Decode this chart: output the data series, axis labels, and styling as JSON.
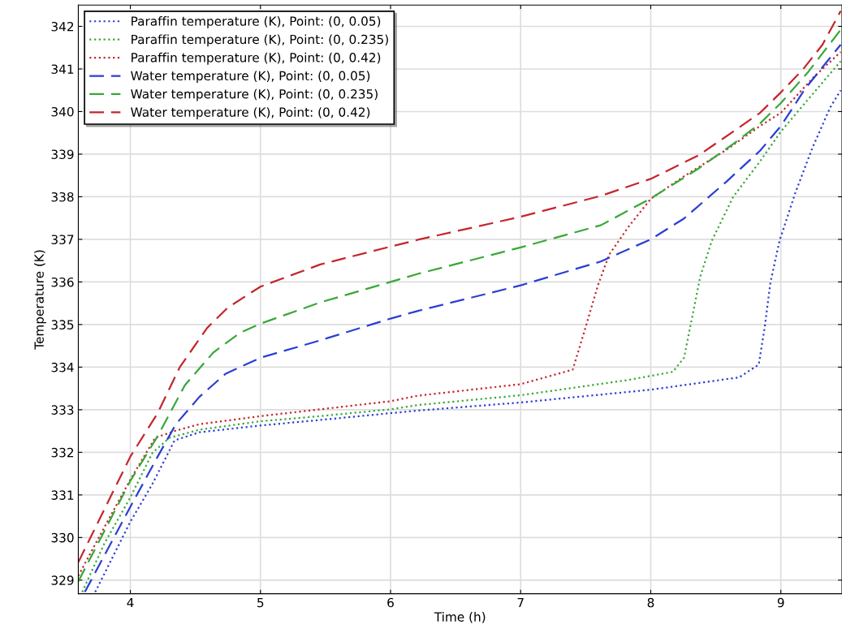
{
  "chart_data": {
    "type": "line",
    "xlabel": "Time (h)",
    "ylabel": "Temperature (K)",
    "xlim": [
      3.6,
      9.47
    ],
    "ylim": [
      328.68,
      342.5
    ],
    "xticks": [
      4,
      5,
      6,
      7,
      8,
      9
    ],
    "yticks": [
      329,
      330,
      331,
      332,
      333,
      334,
      335,
      336,
      337,
      338,
      339,
      340,
      341,
      342
    ],
    "grid": true,
    "legend": "top left",
    "marker": "none",
    "series": [
      {
        "name": "Paraffin temperature (K), Point: (0, 0.05)",
        "color": "#2a3fd4",
        "line_style": "dotted",
        "x": [
          3.73,
          4.0,
          4.17,
          4.34,
          4.53,
          5.0,
          5.46,
          6.0,
          6.21,
          7.0,
          8.0,
          8.68,
          8.83,
          8.876,
          8.92,
          8.99,
          9.11,
          9.24,
          9.38,
          9.46
        ],
        "values": [
          328.72,
          330.37,
          331.26,
          332.28,
          332.47,
          332.63,
          332.76,
          332.92,
          332.98,
          333.17,
          333.47,
          333.76,
          334.06,
          334.94,
          335.99,
          336.97,
          338.08,
          339.13,
          340.1,
          340.5
        ]
      },
      {
        "name": "Paraffin temperature (K), Point: (0, 0.235)",
        "color": "#38a838",
        "line_style": "dotted",
        "x": [
          3.63,
          3.8,
          4.0,
          4.17,
          4.3,
          4.53,
          5.0,
          5.46,
          6.0,
          6.21,
          7.0,
          7.83,
          8.17,
          8.256,
          8.32,
          8.38,
          8.47,
          8.634,
          8.84,
          9.0,
          9.23,
          9.46
        ],
        "values": [
          328.72,
          329.86,
          330.94,
          331.99,
          332.34,
          332.53,
          332.73,
          332.85,
          333.01,
          333.11,
          333.34,
          333.7,
          333.89,
          334.22,
          335.2,
          336.12,
          336.97,
          338.0,
          338.83,
          339.53,
          340.36,
          341.18
        ]
      },
      {
        "name": "Paraffin temperature (K), Point: (0, 0.42)",
        "color": "#c4262c",
        "line_style": "dotted",
        "x": [
          3.6,
          3.8,
          4.0,
          4.19,
          4.34,
          4.53,
          5.0,
          5.46,
          6.0,
          6.21,
          7.0,
          7.4,
          7.487,
          7.594,
          7.68,
          7.83,
          8.0,
          8.256,
          8.58,
          8.84,
          9.0,
          9.25,
          9.46
        ],
        "values": [
          329.1,
          330.24,
          331.36,
          332.34,
          332.5,
          332.66,
          332.85,
          333.01,
          333.2,
          333.33,
          333.6,
          333.94,
          334.81,
          335.92,
          336.64,
          337.3,
          337.95,
          338.48,
          339.1,
          339.66,
          339.97,
          340.8,
          341.4
        ]
      },
      {
        "name": "Water temperature (K), Point: (0, 0.05)",
        "color": "#2a3fd4",
        "line_style": "dashed",
        "x": [
          3.65,
          4.0,
          4.21,
          4.35,
          4.53,
          4.73,
          5.0,
          5.46,
          6.0,
          6.21,
          7.0,
          7.615,
          8.0,
          8.256,
          8.58,
          8.84,
          9.0,
          9.19,
          9.46
        ],
        "values": [
          328.72,
          330.72,
          331.9,
          332.66,
          333.3,
          333.84,
          334.22,
          334.63,
          335.14,
          335.32,
          335.92,
          336.48,
          337.0,
          337.49,
          338.35,
          339.08,
          339.66,
          340.55,
          341.57
        ]
      },
      {
        "name": "Water temperature (K), Point: (0, 0.235)",
        "color": "#38a838",
        "line_style": "dashed",
        "x": [
          3.6,
          4.0,
          4.21,
          4.42,
          4.64,
          4.84,
          5.0,
          5.46,
          6.0,
          6.21,
          7.0,
          7.615,
          8.0,
          8.366,
          8.634,
          8.84,
          9.0,
          9.21,
          9.46
        ],
        "values": [
          328.97,
          331.33,
          332.38,
          333.58,
          334.35,
          334.8,
          335.02,
          335.52,
          336.0,
          336.19,
          336.81,
          337.33,
          337.96,
          338.66,
          339.24,
          339.72,
          340.2,
          340.93,
          341.92
        ]
      },
      {
        "name": "Water temperature (K), Point: (0, 0.42)",
        "color": "#c4262c",
        "line_style": "dashed",
        "x": [
          3.6,
          4.0,
          4.21,
          4.38,
          4.59,
          4.75,
          5.0,
          5.46,
          6.0,
          6.21,
          7.0,
          7.615,
          8.0,
          8.366,
          8.634,
          8.84,
          9.0,
          9.17,
          9.32,
          9.46
        ],
        "values": [
          329.42,
          331.9,
          332.92,
          334.0,
          334.92,
          335.4,
          335.89,
          336.41,
          336.83,
          336.99,
          337.53,
          338.02,
          338.42,
          338.97,
          339.53,
          339.97,
          340.45,
          340.99,
          341.57,
          342.36
        ]
      }
    ]
  }
}
